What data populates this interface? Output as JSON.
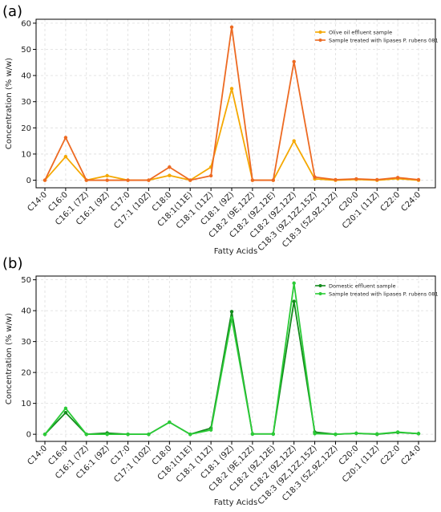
{
  "chart_data": [
    {
      "panel_label": "(a)",
      "type": "line",
      "categories": [
        "C14:0",
        "C16:0",
        "C16:1 (7Z)",
        "C16:1 (9Z)",
        "C17:0",
        "C17:1 (10Z)",
        "C18:0",
        "C18:1(11E)",
        "C18:1 (11Z)",
        "C18:1 (9Z)",
        "C18:2 (9E,12Z)",
        "C18:2 (9Z,12E)",
        "C18:2 (9Z,12Z)",
        "C18:3 (9Z,12Z,15Z)",
        "C18:3 (5Z,9Z,12Z)",
        "C20:0",
        "C20:1 (11Z)",
        "C22:0",
        "C24:0"
      ],
      "series": [
        {
          "name": "Olive oil effluent sample",
          "color": "#f5a800",
          "values": [
            0,
            9,
            0,
            1.7,
            0,
            0,
            1.8,
            0,
            5,
            35,
            0,
            0,
            15,
            0.5,
            0,
            0.3,
            0,
            0.6,
            0
          ]
        },
        {
          "name": "Sample treated with lipases P. rubens 081",
          "color": "#ed6a22",
          "values": [
            0,
            16.3,
            0,
            0,
            0,
            0,
            5,
            0,
            1.7,
            58.5,
            0,
            0,
            45.3,
            1.2,
            0.2,
            0.5,
            0.2,
            1,
            0.2
          ]
        }
      ],
      "xlabel": "Fatty Acids",
      "ylabel": "Concentration (% w/w)",
      "ylim": [
        -2.9,
        61.5
      ],
      "yticks": [
        0,
        10,
        20,
        30,
        40,
        50,
        60
      ],
      "grid": true,
      "legend": "top-right"
    },
    {
      "panel_label": "(b)",
      "type": "line",
      "categories": [
        "C14:0",
        "C16:0",
        "C16:1 (7Z)",
        "C16:1 (9Z)",
        "C17:0",
        "C17:1 (10Z)",
        "C18:0",
        "C18:1(11E)",
        "C18:1 (11Z)",
        "C18:1 (9Z)",
        "C18:2 (9E,12Z)",
        "C18:2 (9Z,12E)",
        "C18:2 (9Z,12Z)",
        "C18:3 (9Z,12Z,15Z)",
        "C18:3 (5Z,9Z,12Z)",
        "C20:0",
        "C20:1 (11Z)",
        "C22:0",
        "C24:0"
      ],
      "series": [
        {
          "name": "Domestic effluent sample",
          "color": "#138a1c",
          "values": [
            0,
            7,
            0,
            0.4,
            0,
            0,
            3.9,
            0,
            2,
            39.7,
            0.1,
            0.1,
            43,
            0.7,
            0,
            0.3,
            0,
            0.6,
            0.2
          ]
        },
        {
          "name": "Sample treated with lipases P. rubens 081",
          "color": "#2bcb37",
          "values": [
            0,
            8.4,
            0,
            0,
            0,
            0,
            3.9,
            0,
            1.4,
            37.6,
            0.1,
            0.1,
            48.9,
            0.2,
            0,
            0.3,
            0.1,
            0.7,
            0.2
          ]
        }
      ],
      "xlabel": "Fatty Acids",
      "ylabel": "Concentration (% w/w)",
      "ylim": [
        -2.3,
        51.2
      ],
      "yticks": [
        0,
        10,
        20,
        30,
        40,
        50
      ],
      "grid": true,
      "legend": "top-right"
    }
  ]
}
